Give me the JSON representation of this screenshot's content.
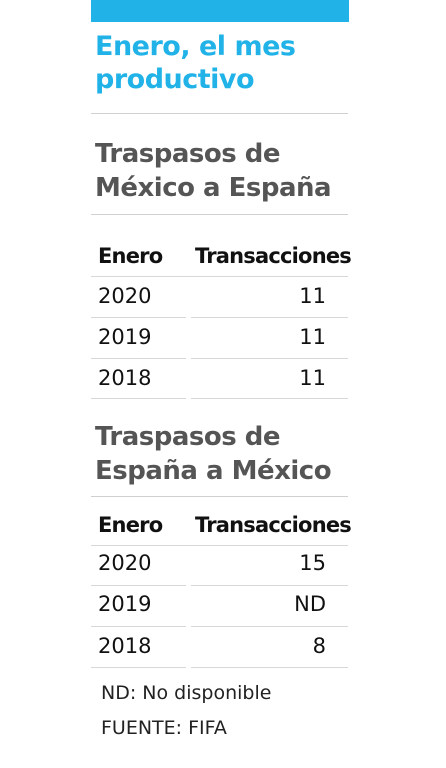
{
  "headline": {
    "line1": "Enero, el mes",
    "line2": "productivo"
  },
  "table_mx_es": {
    "title_line1": "Traspasos de",
    "title_line2": "México a España",
    "col_month": "Enero",
    "col_transactions": "Transacciones",
    "rows": [
      {
        "year": "2020",
        "value": "11"
      },
      {
        "year": "2019",
        "value": "11"
      },
      {
        "year": "2018",
        "value": "11"
      }
    ]
  },
  "table_es_mx": {
    "title_line1": "Traspasos de",
    "title_line2": "España a México",
    "col_month": "Enero",
    "col_transactions": "Transacciones",
    "rows": [
      {
        "year": "2020",
        "value": "15"
      },
      {
        "year": "2019",
        "value": "ND"
      },
      {
        "year": "2018",
        "value": "8"
      }
    ]
  },
  "footnotes": {
    "nd_note": "ND: No disponible",
    "source": "FUENTE: FIFA"
  },
  "colors": {
    "accent": "#21b3e8",
    "title_gray": "#555555"
  }
}
